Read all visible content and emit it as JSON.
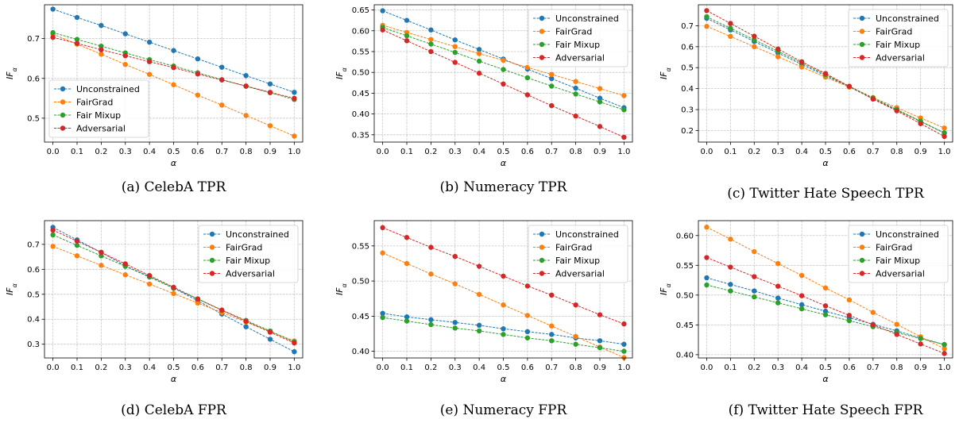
{
  "colors": {
    "Unconstrained": "#1f77b4",
    "FairGrad": "#ff7f0e",
    "Fair Mixup": "#2ca02c",
    "Adversarial": "#d62728"
  },
  "chart_data": [
    {
      "type": "line",
      "caption": "(a) CelebA TPR",
      "xlabel": "α",
      "ylabel": "IF",
      "ylabel_sub": "α",
      "x": [
        0.0,
        0.1,
        0.2,
        0.3,
        0.4,
        0.5,
        0.6,
        0.7,
        0.8,
        0.9,
        1.0
      ],
      "xlim": [
        -0.035,
        1.035
      ],
      "ylim": [
        0.44,
        0.785
      ],
      "yticks": [
        0.5,
        0.6,
        0.7
      ],
      "grid": true,
      "legend_position": "lower-left",
      "series": [
        {
          "name": "Unconstrained",
          "values": [
            0.774,
            0.753,
            0.733,
            0.712,
            0.691,
            0.67,
            0.649,
            0.628,
            0.607,
            0.586,
            0.565
          ]
        },
        {
          "name": "FairGrad",
          "values": [
            0.711,
            0.686,
            0.661,
            0.635,
            0.61,
            0.584,
            0.558,
            0.533,
            0.507,
            0.481,
            0.455
          ]
        },
        {
          "name": "Fair Mixup",
          "values": [
            0.715,
            0.698,
            0.681,
            0.664,
            0.647,
            0.631,
            0.614,
            0.597,
            0.58,
            0.564,
            0.547
          ]
        },
        {
          "name": "Adversarial",
          "values": [
            0.703,
            0.688,
            0.672,
            0.657,
            0.642,
            0.627,
            0.611,
            0.596,
            0.581,
            0.565,
            0.55
          ]
        }
      ]
    },
    {
      "type": "line",
      "caption": "(b) Numeracy TPR",
      "xlabel": "α",
      "ylabel": "IF",
      "ylabel_sub": "α",
      "x": [
        0.0,
        0.1,
        0.2,
        0.3,
        0.4,
        0.5,
        0.6,
        0.7,
        0.8,
        0.9,
        1.0
      ],
      "xlim": [
        -0.035,
        1.035
      ],
      "ylim": [
        0.3325,
        0.6625
      ],
      "yticks": [
        0.35,
        0.4,
        0.45,
        0.5,
        0.55,
        0.6,
        0.65
      ],
      "grid": true,
      "legend_position": "top-right",
      "series": [
        {
          "name": "Unconstrained",
          "values": [
            0.648,
            0.625,
            0.602,
            0.578,
            0.555,
            0.532,
            0.508,
            0.485,
            0.462,
            0.438,
            0.415
          ]
        },
        {
          "name": "FairGrad",
          "values": [
            0.613,
            0.596,
            0.579,
            0.562,
            0.545,
            0.529,
            0.512,
            0.495,
            0.478,
            0.461,
            0.444
          ]
        },
        {
          "name": "Fair Mixup",
          "values": [
            0.608,
            0.588,
            0.568,
            0.548,
            0.527,
            0.507,
            0.487,
            0.467,
            0.448,
            0.429,
            0.41
          ]
        },
        {
          "name": "Adversarial",
          "values": [
            0.602,
            0.576,
            0.55,
            0.524,
            0.498,
            0.472,
            0.446,
            0.42,
            0.395,
            0.37,
            0.344
          ]
        }
      ]
    },
    {
      "type": "line",
      "caption": "(c) Twitter Hate Speech TPR",
      "xlabel": "α",
      "ylabel": "IF",
      "ylabel_sub": "α",
      "x": [
        0.0,
        0.1,
        0.2,
        0.3,
        0.4,
        0.5,
        0.6,
        0.7,
        0.8,
        0.9,
        1.0
      ],
      "xlim": [
        -0.035,
        1.035
      ],
      "ylim": [
        0.145,
        0.8
      ],
      "yticks": [
        0.2,
        0.3,
        0.4,
        0.5,
        0.6,
        0.7
      ],
      "grid": true,
      "legend_position": "top-right",
      "series": [
        {
          "name": "Unconstrained",
          "values": [
            0.735,
            0.68,
            0.625,
            0.57,
            0.515,
            0.462,
            0.408,
            0.352,
            0.298,
            0.243,
            0.188
          ]
        },
        {
          "name": "FairGrad",
          "values": [
            0.697,
            0.649,
            0.6,
            0.552,
            0.503,
            0.455,
            0.407,
            0.357,
            0.309,
            0.26,
            0.212
          ]
        },
        {
          "name": "Fair Mixup",
          "values": [
            0.743,
            0.688,
            0.633,
            0.578,
            0.522,
            0.467,
            0.411,
            0.356,
            0.3,
            0.245,
            0.189
          ]
        },
        {
          "name": "Adversarial",
          "values": [
            0.772,
            0.711,
            0.65,
            0.589,
            0.528,
            0.472,
            0.411,
            0.35,
            0.294,
            0.233,
            0.172
          ]
        }
      ]
    },
    {
      "type": "line",
      "caption": "(d) CelebA FPR",
      "xlabel": "α",
      "ylabel": "IF",
      "ylabel_sub": "α",
      "x": [
        0.0,
        0.1,
        0.2,
        0.3,
        0.4,
        0.5,
        0.6,
        0.7,
        0.8,
        0.9,
        1.0
      ],
      "xlim": [
        -0.035,
        1.035
      ],
      "ylim": [
        0.245,
        0.795
      ],
      "yticks": [
        0.3,
        0.4,
        0.5,
        0.6,
        0.7
      ],
      "grid": true,
      "legend_position": "top-right",
      "series": [
        {
          "name": "Unconstrained",
          "values": [
            0.768,
            0.718,
            0.668,
            0.614,
            0.571,
            0.525,
            0.474,
            0.421,
            0.37,
            0.32,
            0.27
          ]
        },
        {
          "name": "FairGrad",
          "values": [
            0.692,
            0.654,
            0.616,
            0.578,
            0.541,
            0.503,
            0.465,
            0.427,
            0.389,
            0.351,
            0.313
          ]
        },
        {
          "name": "Fair Mixup",
          "values": [
            0.738,
            0.696,
            0.654,
            0.612,
            0.569,
            0.524,
            0.482,
            0.437,
            0.395,
            0.353,
            0.309
          ]
        },
        {
          "name": "Adversarial",
          "values": [
            0.757,
            0.713,
            0.668,
            0.622,
            0.575,
            0.528,
            0.481,
            0.436,
            0.392,
            0.348,
            0.305
          ]
        }
      ]
    },
    {
      "type": "line",
      "caption": "(e) Numeracy FPR",
      "xlabel": "α",
      "ylabel": "IF",
      "ylabel_sub": "α",
      "x": [
        0.0,
        0.1,
        0.2,
        0.3,
        0.4,
        0.5,
        0.6,
        0.7,
        0.8,
        0.9,
        1.0
      ],
      "xlim": [
        -0.035,
        1.035
      ],
      "ylim": [
        0.3905,
        0.586
      ],
      "yticks": [
        0.4,
        0.45,
        0.5,
        0.55
      ],
      "grid": true,
      "legend_position": "top-right",
      "series": [
        {
          "name": "Unconstrained",
          "values": [
            0.454,
            0.449,
            0.445,
            0.441,
            0.437,
            0.432,
            0.428,
            0.424,
            0.419,
            0.415,
            0.41
          ]
        },
        {
          "name": "FairGrad",
          "values": [
            0.54,
            0.525,
            0.51,
            0.496,
            0.481,
            0.466,
            0.451,
            0.436,
            0.421,
            0.406,
            0.391
          ]
        },
        {
          "name": "Fair Mixup",
          "values": [
            0.448,
            0.443,
            0.438,
            0.433,
            0.429,
            0.424,
            0.419,
            0.415,
            0.41,
            0.405,
            0.4
          ]
        },
        {
          "name": "Adversarial",
          "values": [
            0.576,
            0.562,
            0.548,
            0.535,
            0.521,
            0.507,
            0.493,
            0.48,
            0.466,
            0.452,
            0.439
          ]
        }
      ]
    },
    {
      "type": "line",
      "caption": "(f) Twitter Hate Speech FPR",
      "xlabel": "α",
      "ylabel": "IF",
      "ylabel_sub": "α",
      "x": [
        0.0,
        0.1,
        0.2,
        0.3,
        0.4,
        0.5,
        0.6,
        0.7,
        0.8,
        0.9,
        1.0
      ],
      "xlim": [
        -0.035,
        1.035
      ],
      "ylim": [
        0.3945,
        0.625
      ],
      "yticks": [
        0.4,
        0.45,
        0.5,
        0.55,
        0.6
      ],
      "grid": true,
      "legend_position": "top-right",
      "series": [
        {
          "name": "Unconstrained",
          "values": [
            0.529,
            0.518,
            0.507,
            0.495,
            0.484,
            0.473,
            0.462,
            0.451,
            0.44,
            0.428,
            0.417
          ]
        },
        {
          "name": "FairGrad",
          "values": [
            0.614,
            0.594,
            0.573,
            0.553,
            0.533,
            0.512,
            0.492,
            0.471,
            0.451,
            0.43,
            0.41
          ]
        },
        {
          "name": "Fair Mixup",
          "values": [
            0.517,
            0.507,
            0.497,
            0.487,
            0.477,
            0.467,
            0.457,
            0.447,
            0.437,
            0.427,
            0.417
          ]
        },
        {
          "name": "Adversarial",
          "values": [
            0.563,
            0.547,
            0.531,
            0.515,
            0.499,
            0.482,
            0.466,
            0.45,
            0.434,
            0.418,
            0.402
          ]
        }
      ]
    }
  ]
}
